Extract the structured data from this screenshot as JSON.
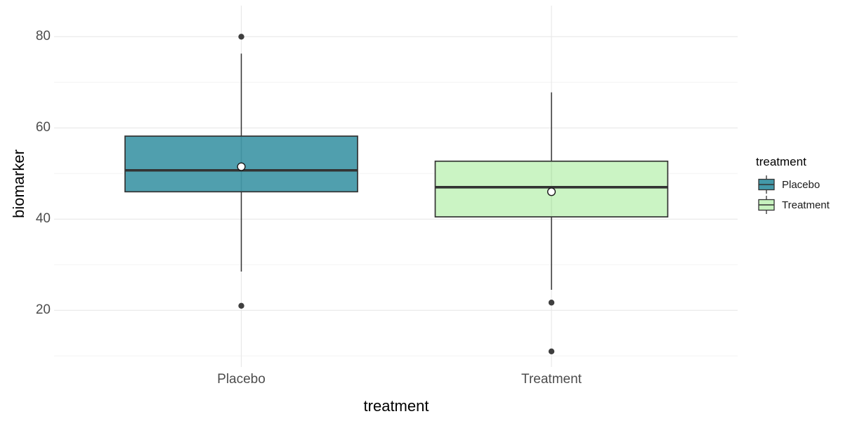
{
  "axes": {
    "y_title": "biomarker",
    "x_title": "treatment"
  },
  "legend": {
    "title": "treatment",
    "position": "right",
    "items": [
      {
        "label": "Placebo",
        "fill": "#4398A8"
      },
      {
        "label": "Treatment",
        "fill": "#C7F3BF"
      }
    ]
  },
  "colors": {
    "background": "#FFFFFF",
    "box_border": "#333333",
    "median_line": "#333333",
    "whisker": "#333333",
    "outlier_point": "#3F3F3F",
    "mean_fill": "#FFFFFF",
    "mean_stroke": "#1A1A1A",
    "grid_major": "#E8E8E8",
    "grid_minor": "#F4F4F4",
    "tick_text": "#4D4D4D",
    "title_text": "#000000"
  },
  "chart_data": {
    "type": "boxplot",
    "title": "",
    "xlabel": "treatment",
    "ylabel": "biomarker",
    "categories": [
      "Placebo",
      "Treatment"
    ],
    "y_ticks": [
      20,
      40,
      60,
      80
    ],
    "y_minor_gridlines": [
      10,
      30,
      50,
      70
    ],
    "ylim": [
      7.5,
      86.8
    ],
    "grid": true,
    "legend_position": "right",
    "series": [
      {
        "name": "Placebo",
        "fill": "#4398A8",
        "whisker_low": 28.5,
        "q1": 46,
        "median": 50.7,
        "q3": 58.2,
        "whisker_high": 76.3,
        "mean": 51.5,
        "outliers": [
          80,
          21
        ]
      },
      {
        "name": "Treatment",
        "fill": "#C7F3BF",
        "whisker_low": 24.5,
        "q1": 40.5,
        "median": 47,
        "q3": 52.7,
        "whisker_high": 67.8,
        "mean": 46,
        "outliers": [
          21.7,
          11
        ]
      }
    ]
  }
}
